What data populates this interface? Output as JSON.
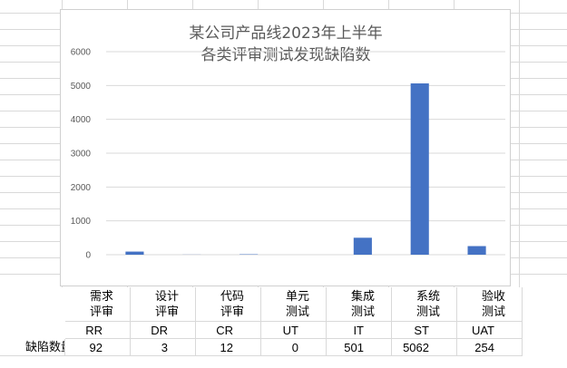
{
  "chart_data": {
    "type": "bar",
    "title": [
      "某公司产品线2023年上半年",
      "各类评审测试发现缺陷数"
    ],
    "categories": [
      "RR",
      "DR",
      "CR",
      "UT",
      "IT",
      "ST",
      "UAT"
    ],
    "series": [
      {
        "values": [
          92,
          3,
          12,
          0,
          501,
          5062,
          254
        ]
      }
    ],
    "ylim": [
      0,
      6000
    ],
    "yticks": [
      0,
      1000,
      2000,
      3000,
      4000,
      5000,
      6000
    ],
    "ytick_labels": [
      "0",
      "1000",
      "2000",
      "3000",
      "4000",
      "5000",
      "6000"
    ],
    "grid": true,
    "legend": "none",
    "bar_color": "#4472c4"
  },
  "table": {
    "row_header": "缺陷数量:",
    "columns": [
      {
        "name_line1": "需求",
        "name_line2": "评审",
        "code": "RR",
        "count": "92"
      },
      {
        "name_line1": "设计",
        "name_line2": "评审",
        "code": "DR",
        "count": "3"
      },
      {
        "name_line1": "代码",
        "name_line2": "评审",
        "code": "CR",
        "count": "12"
      },
      {
        "name_line1": "单元",
        "name_line2": "测试",
        "code": "UT",
        "count": "0"
      },
      {
        "name_line1": "集成",
        "name_line2": "测试",
        "code": "IT",
        "count": "501"
      },
      {
        "name_line1": "系统",
        "name_line2": "测试",
        "code": "ST",
        "count": "5062"
      },
      {
        "name_line1": "验收",
        "name_line2": "测试",
        "code": "UAT",
        "count": "254"
      }
    ]
  }
}
